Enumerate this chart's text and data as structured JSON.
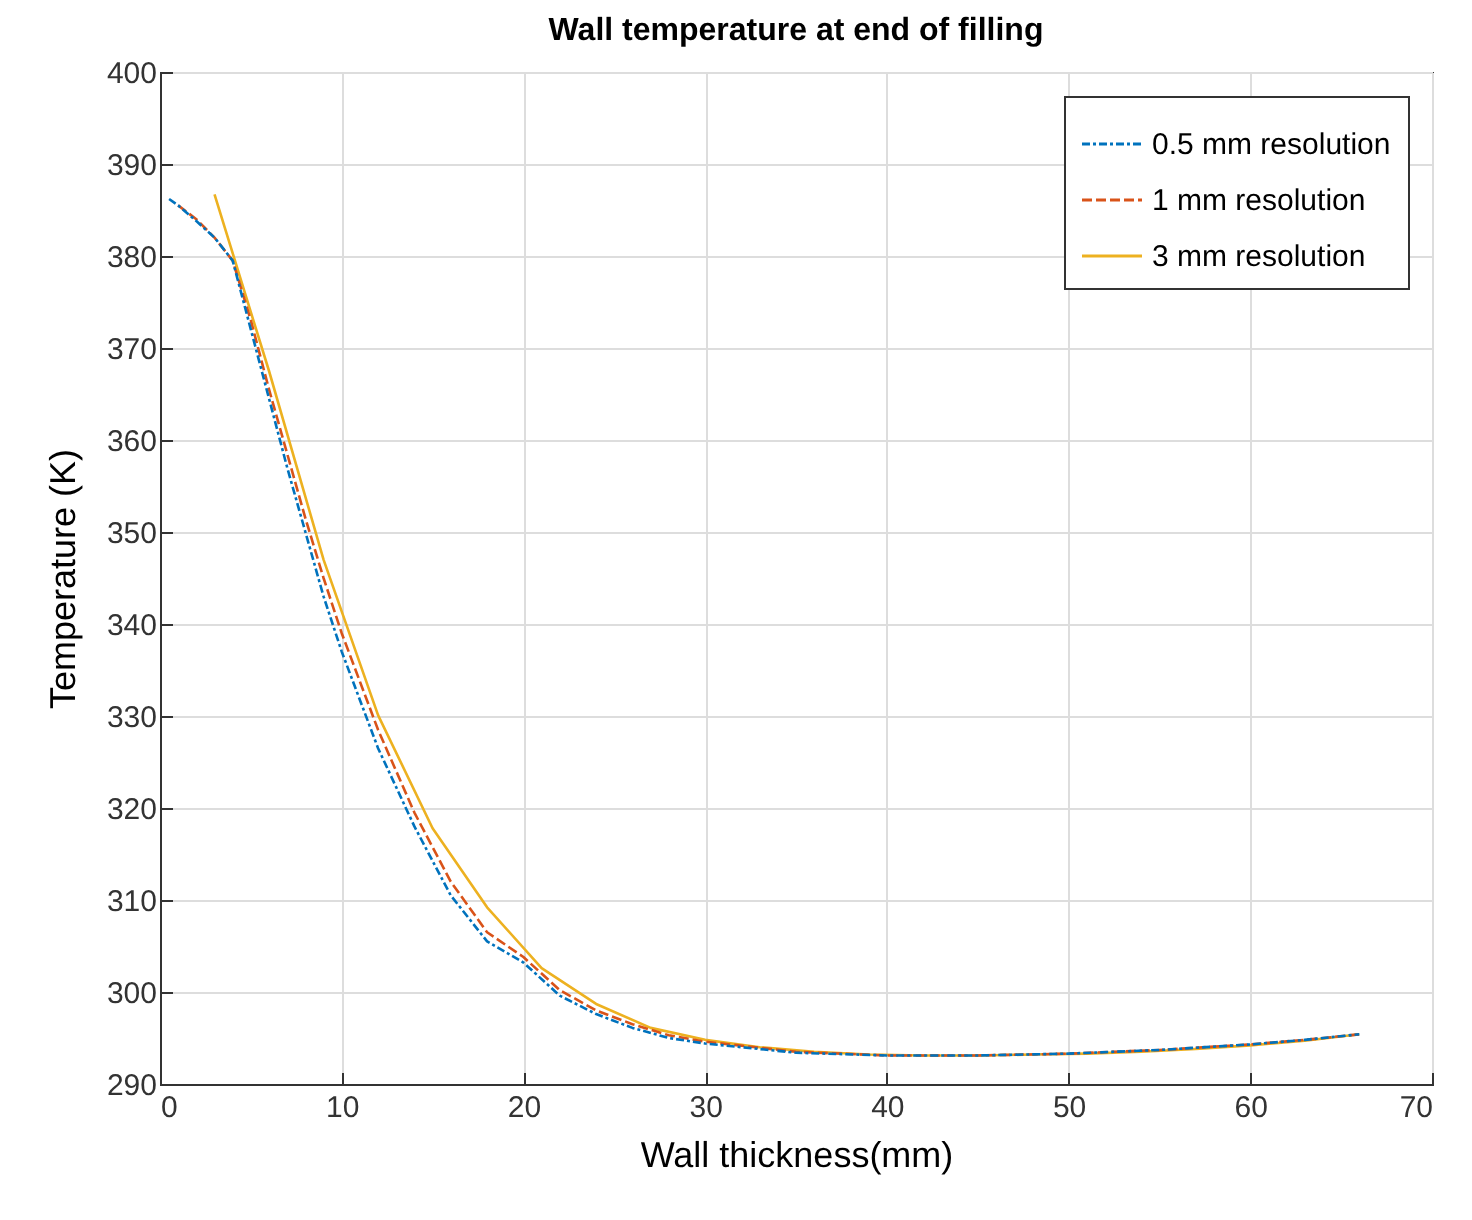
{
  "chart_data": {
    "type": "line",
    "title": "Wall temperature at end of filling",
    "xlabel": "Wall thickness(mm)",
    "ylabel": "Temperature (K)",
    "xlim": [
      0,
      70
    ],
    "xticks": [
      0,
      10,
      20,
      30,
      40,
      50,
      60,
      70
    ],
    "ylim": [
      290,
      400
    ],
    "yticks": [
      290,
      300,
      310,
      320,
      330,
      340,
      350,
      360,
      370,
      380,
      390,
      400
    ],
    "grid": true,
    "legend": "top right",
    "marker": "none",
    "series": [
      {
        "name": "0.5 mm resolution",
        "color": "#0072bd",
        "line_style": "dashdot",
        "x": [
          0.5,
          1,
          2,
          3,
          4,
          5,
          6,
          7,
          8,
          9,
          10,
          12,
          14,
          16,
          18,
          20,
          22,
          24,
          26,
          28,
          30,
          35,
          40,
          45,
          50,
          55,
          60,
          63,
          66
        ],
        "values": [
          386.2,
          385.5,
          383.8,
          382,
          379.5,
          372,
          364.5,
          357,
          350,
          343,
          337,
          326.5,
          318,
          310.5,
          305.5,
          303.2,
          299.6,
          297.6,
          296.1,
          295,
          294.4,
          293.4,
          293.1,
          293.1,
          293.3,
          293.7,
          294.3,
          294.8,
          295.4
        ]
      },
      {
        "name": "1 mm resolution",
        "color": "#d95319",
        "line_style": "dashed",
        "x": [
          1,
          2,
          3,
          4,
          5,
          6,
          7,
          8,
          9,
          10,
          12,
          14,
          16,
          18,
          20,
          22,
          24,
          26,
          28,
          30,
          35,
          40,
          45,
          50,
          55,
          60,
          63,
          66
        ],
        "values": [
          385.5,
          384,
          382,
          379.5,
          373,
          365.5,
          358.5,
          351.5,
          345,
          339,
          328.5,
          319.5,
          312,
          306.5,
          303.8,
          300.2,
          298,
          296.5,
          295.3,
          294.6,
          293.5,
          293.1,
          293.1,
          293.3,
          293.7,
          294.3,
          294.8,
          295.4
        ]
      },
      {
        "name": "3 mm resolution",
        "color": "#edb120",
        "line_style": "solid",
        "x": [
          3,
          6,
          9,
          12,
          15,
          18,
          21,
          24,
          27,
          30,
          33,
          36,
          39,
          42,
          45,
          48,
          51,
          54,
          57,
          60,
          63,
          66
        ],
        "values": [
          386.7,
          367.5,
          347,
          330.1,
          317.8,
          309.2,
          302.6,
          298.7,
          296.1,
          294.8,
          294,
          293.5,
          293.2,
          293.1,
          293.1,
          293.2,
          293.3,
          293.5,
          293.8,
          294.2,
          294.7,
          295.4
        ]
      }
    ]
  }
}
